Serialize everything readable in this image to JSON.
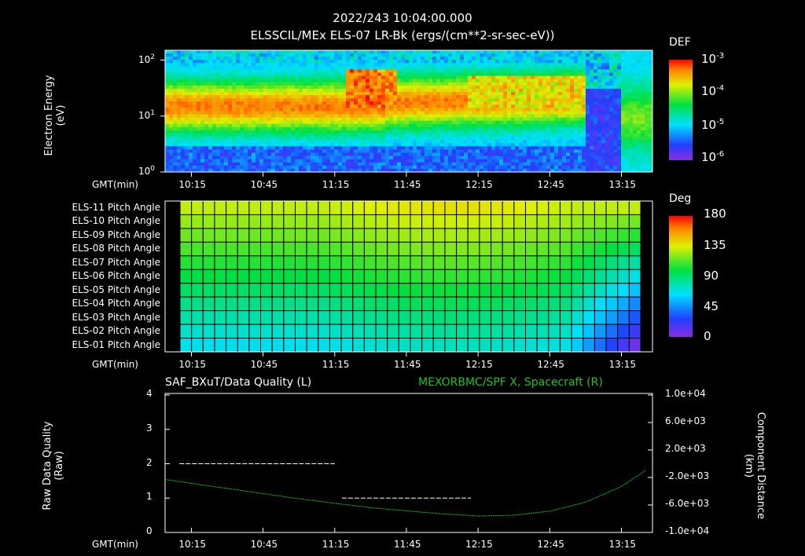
{
  "header": {
    "timestamp": "2022/243 10:04:00.000",
    "subtitle": "ELSSCIL/MEx ELS-07 LR-Bk  (ergs/(cm**2-sr-sec-eV))"
  },
  "colors": {
    "background": "#000000",
    "axis": "#ffffff",
    "green_series": "#22c022",
    "white_series": "#ffffff"
  },
  "spectrogram": {
    "ylabel": "Electron Energy",
    "yunit": "(eV)",
    "xprefix": "GMT(min)",
    "colorbar_title": "DEF",
    "colorbar_ticks": [
      "10",
      "10",
      "10",
      "10"
    ],
    "colorbar_exps": [
      "-3",
      "-4",
      "-5",
      "-6"
    ]
  },
  "pitch": {
    "xprefix": "GMT(min)",
    "colorbar_title": "Deg",
    "colorbar_ticks": [
      "180",
      "135",
      "90",
      "45",
      "0"
    ],
    "rows": [
      "ELS-11 Pitch Angle",
      "ELS-10 Pitch Angle",
      "ELS-09 Pitch Angle",
      "ELS-08 Pitch Angle",
      "ELS-07 Pitch Angle",
      "ELS-06 Pitch Angle",
      "ELS-05 Pitch Angle",
      "ELS-04 Pitch Angle",
      "ELS-03 Pitch Angle",
      "ELS-02 Pitch Angle",
      "ELS-01 Pitch Angle"
    ]
  },
  "lineplot": {
    "left_title": "SAF_BXuT/Data Quality (L)",
    "right_title": "MEXORBMC/SPF X, Spacecraft (R)",
    "ylabel_left": "Raw Data Quality",
    "ylabel_left_unit": "(Raw)",
    "ylabel_right": "Component Distance",
    "ylabel_right_unit": "(km)",
    "xprefix": "GMT(min)"
  },
  "chart_data": [
    {
      "type": "heatmap",
      "title": "ELSSCIL/MEx ELS-07 LR-Bk  (ergs/(cm**2-sr-sec-eV))",
      "xlabel": "GMT(min)",
      "ylabel": "Electron Energy (eV)",
      "x_ticks": [
        "10:15",
        "10:45",
        "11:15",
        "11:45",
        "12:15",
        "12:45",
        "13:15"
      ],
      "y_ticks": [
        "10",
        "10",
        "10"
      ],
      "y_tick_exps": [
        "2",
        "1",
        "0"
      ],
      "y_scale": "log",
      "ylim": [
        1,
        150
      ],
      "colorbar": {
        "label": "DEF",
        "range": [
          1e-06,
          0.001
        ],
        "scale": "log"
      }
    },
    {
      "type": "heatmap",
      "title": "Pitch Angle",
      "xlabel": "GMT(min)",
      "x_ticks": [
        "10:15",
        "10:45",
        "11:15",
        "11:45",
        "12:15",
        "12:45",
        "13:15"
      ],
      "colorbar": {
        "label": "Deg",
        "range": [
          0,
          180
        ]
      }
    },
    {
      "type": "line",
      "xlabel": "GMT(min)",
      "x_ticks": [
        "10:15",
        "10:45",
        "11:15",
        "11:45",
        "12:15",
        "12:45",
        "13:15"
      ],
      "left_axis": {
        "label": "Raw Data Quality (Raw)",
        "ticks": [
          "4",
          "3",
          "2",
          "1",
          "0"
        ],
        "ylim": [
          0,
          4
        ]
      },
      "right_axis": {
        "label": "Component Distance (km)",
        "ticks": [
          "1.0e+04",
          "6.0e+03",
          "2.0e+03",
          "-2.0e+03",
          "-6.0e+03",
          "-1.0e+04"
        ],
        "ylim": [
          -10000,
          10000
        ]
      },
      "series": [
        {
          "name": "SAF_BXuT/Data Quality (L)",
          "axis": "left",
          "segments": [
            {
              "x": [
                "10:10",
                "11:15"
              ],
              "y": 2
            },
            {
              "x": [
                "11:18",
                "12:12"
              ],
              "y": 1
            },
            {
              "x": [
                "12:18",
                "13:22"
              ],
              "y": 0
            }
          ]
        },
        {
          "name": "MEXORBMC/SPF X, Spacecraft (R)",
          "axis": "right",
          "x": [
            "10:04",
            "10:30",
            "11:00",
            "11:30",
            "12:00",
            "12:15",
            "12:30",
            "12:45",
            "13:00",
            "13:15",
            "13:25"
          ],
          "y": [
            -2300,
            -3600,
            -5100,
            -6400,
            -7300,
            -7600,
            -7500,
            -6900,
            -5600,
            -3300,
            -1000
          ]
        }
      ]
    }
  ]
}
